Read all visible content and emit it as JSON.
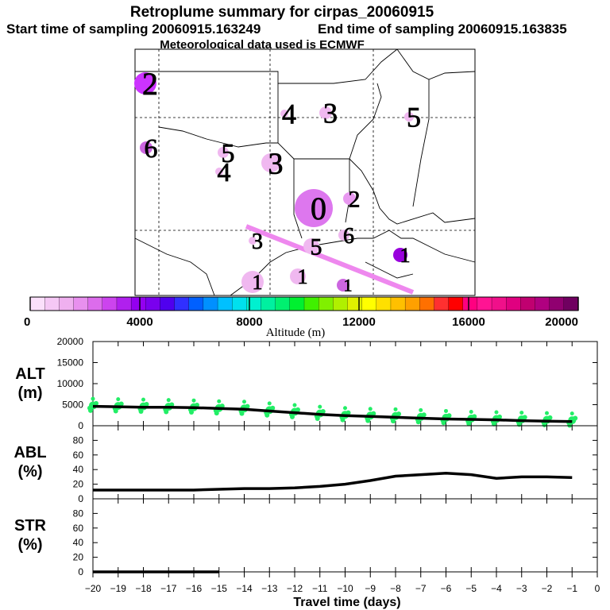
{
  "title": {
    "line1": "Retroplume summary for cirpas_20060915",
    "start": "Start time of sampling 20060915.163249",
    "end": "End time of sampling 20060915.163835",
    "met": "Meteorological data used is ECMWF"
  },
  "map": {
    "markers": [
      {
        "label": "2",
        "color": "#cc33ff"
      },
      {
        "label": "4",
        "color": "#f0b8f0"
      },
      {
        "label": "3",
        "color": "#f0b8f0"
      },
      {
        "label": "5",
        "color": "#f0b8f0"
      },
      {
        "label": "6",
        "color": "#cc66e0"
      },
      {
        "label": "5",
        "color": "#f0b8f0"
      },
      {
        "label": "4",
        "color": "#f0b8f0"
      },
      {
        "label": "3",
        "color": "#f0b8f0"
      },
      {
        "label": "2",
        "color": "#e899f0"
      },
      {
        "label": "0",
        "color": "#dd77ee"
      },
      {
        "label": "6",
        "color": "#f0b8f0"
      },
      {
        "label": "5",
        "color": "#f0b8f0"
      },
      {
        "label": "1",
        "color": "#9900dd"
      },
      {
        "label": "3",
        "color": "#f0b8f0"
      },
      {
        "label": "1",
        "color": "#f0b8f0"
      },
      {
        "label": "1",
        "color": "#f0b8f0"
      },
      {
        "label": "1",
        "color": "#cc66e0"
      }
    ]
  },
  "colorbar": {
    "title": "Altitude (m)",
    "labels": [
      "0",
      "4000",
      "8000",
      "12000",
      "16000",
      "20000"
    ],
    "colors": [
      "#fbe0fb",
      "#f5c8f5",
      "#efb0ef",
      "#e890ee",
      "#dc6cec",
      "#cc44ee",
      "#b020ee",
      "#9400f0",
      "#7a00ee",
      "#5000ee",
      "#3030ff",
      "#0060ff",
      "#0090ff",
      "#00c0ff",
      "#00e0ee",
      "#00f0d0",
      "#00f0a0",
      "#00f070",
      "#00f030",
      "#40f000",
      "#80f000",
      "#b0f000",
      "#e0f000",
      "#ffff00",
      "#ffe000",
      "#ffc000",
      "#ffa000",
      "#ff7000",
      "#ff3030",
      "#ff0000",
      "#ff0080",
      "#ff1493",
      "#f0108a",
      "#e00080",
      "#c00070",
      "#b00080",
      "#900070",
      "#700060"
    ]
  },
  "x_axis": {
    "label": "Travel time (days)",
    "ticks": [
      "−20",
      "−19",
      "−18",
      "−17",
      "−16",
      "−15",
      "−14",
      "−13",
      "−12",
      "−11",
      "−10",
      "−9",
      "−8",
      "−7",
      "−6",
      "−5",
      "−4",
      "−3",
      "−2",
      "−1",
      "0"
    ]
  },
  "chart_data": [
    {
      "type": "line",
      "panel": "ALT",
      "ylabel": "ALT (m)",
      "ylabel_line1": "ALT",
      "ylabel_line2": "(m)",
      "ylim": [
        0,
        20000
      ],
      "yticks": [
        "0",
        "5000",
        "10000",
        "15000",
        "20000"
      ],
      "xlim": [
        -20,
        0
      ],
      "x": [
        -20,
        -19,
        -18,
        -17,
        -16,
        -15,
        -14,
        -13,
        -12,
        -11,
        -10,
        -9,
        -8,
        -7,
        -6,
        -5,
        -4,
        -3,
        -2,
        -1
      ],
      "series": [
        {
          "name": "median altitude",
          "color": "#000000",
          "values": [
            4600,
            4500,
            4400,
            4400,
            4300,
            4100,
            3900,
            3500,
            3100,
            2700,
            2400,
            2200,
            2000,
            1800,
            1600,
            1500,
            1400,
            1200,
            1100,
            1000
          ]
        },
        {
          "name": "particle spread",
          "color": "#22ee66",
          "values": [
            4800,
            4700,
            4600,
            4500,
            4400,
            4200,
            4100,
            3700,
            3300,
            2900,
            2600,
            2400,
            2300,
            2100,
            1900,
            1700,
            1600,
            1500,
            1400,
            1300
          ]
        }
      ],
      "scatter_days": [
        -20,
        -19,
        -18,
        -17,
        -16,
        -15,
        -14,
        -13,
        -12,
        -11,
        -10,
        -9,
        -8,
        -7,
        -6,
        -5,
        -4,
        -3,
        -2,
        -1
      ]
    },
    {
      "type": "line",
      "panel": "ABL",
      "ylabel": "ABL (%)",
      "ylabel_line1": "ABL",
      "ylabel_line2": "(%)",
      "ylim": [
        0,
        100
      ],
      "yticks": [
        "0",
        "20",
        "40",
        "60",
        "80"
      ],
      "xlim": [
        -20,
        0
      ],
      "x": [
        -20,
        -19,
        -18,
        -17,
        -16,
        -15,
        -14,
        -13,
        -12,
        -11,
        -10,
        -9,
        -8,
        -7,
        -6,
        -5,
        -4,
        -3,
        -2,
        -1
      ],
      "series": [
        {
          "name": "ABL fraction",
          "color": "#000000",
          "values": [
            12,
            12,
            12,
            12,
            12,
            13,
            14,
            14,
            15,
            17,
            20,
            25,
            31,
            33,
            35,
            33,
            28,
            30,
            30,
            29
          ]
        }
      ]
    },
    {
      "type": "line",
      "panel": "STR",
      "ylabel": "STR (%)",
      "ylabel_line1": "STR",
      "ylabel_line2": "(%)",
      "ylim": [
        0,
        100
      ],
      "yticks": [
        "0",
        "20",
        "40",
        "60",
        "80"
      ],
      "xlim": [
        -20,
        0
      ],
      "x": [
        -20,
        -19,
        -18,
        -17,
        -16,
        -15
      ],
      "series": [
        {
          "name": "STR fraction",
          "color": "#000000",
          "values": [
            0,
            0,
            0,
            0,
            0,
            0
          ]
        }
      ]
    }
  ]
}
